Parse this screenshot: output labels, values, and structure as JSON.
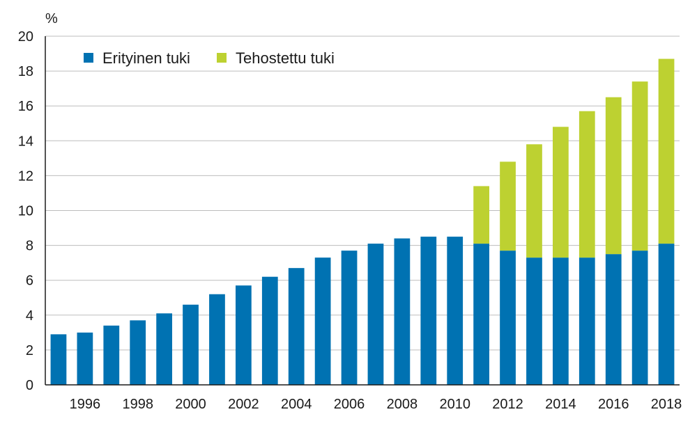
{
  "chart_data": {
    "type": "bar",
    "stacked": true,
    "ylabel": "%",
    "ylim": [
      0,
      20
    ],
    "yticks": [
      0,
      2,
      4,
      6,
      8,
      10,
      12,
      14,
      16,
      18,
      20
    ],
    "grid": true,
    "legend_position": "top-left",
    "categories": [
      "1995",
      "1996",
      "1997",
      "1998",
      "1999",
      "2000",
      "2001",
      "2002",
      "2003",
      "2004",
      "2005",
      "2006",
      "2007",
      "2008",
      "2009",
      "2010",
      "2011",
      "2012",
      "2013",
      "2014",
      "2015",
      "2016",
      "2017",
      "2018"
    ],
    "x_tick_labels": [
      "1996",
      "1998",
      "2000",
      "2002",
      "2004",
      "2006",
      "2008",
      "2010",
      "2012",
      "2014",
      "2016",
      "2018"
    ],
    "series": [
      {
        "name": "Erityinen tuki",
        "color": "#0072b2",
        "values": [
          2.9,
          3.0,
          3.4,
          3.7,
          4.1,
          4.6,
          5.2,
          5.7,
          6.2,
          6.7,
          7.3,
          7.7,
          8.1,
          8.4,
          8.5,
          8.5,
          8.1,
          7.7,
          7.3,
          7.3,
          7.3,
          7.5,
          7.7,
          8.1
        ]
      },
      {
        "name": "Tehostettu tuki",
        "color": "#bdd131",
        "values": [
          0,
          0,
          0,
          0,
          0,
          0,
          0,
          0,
          0,
          0,
          0,
          0,
          0,
          0,
          0,
          0,
          3.3,
          5.1,
          6.5,
          7.5,
          8.4,
          9.0,
          9.7,
          10.6
        ]
      }
    ]
  }
}
